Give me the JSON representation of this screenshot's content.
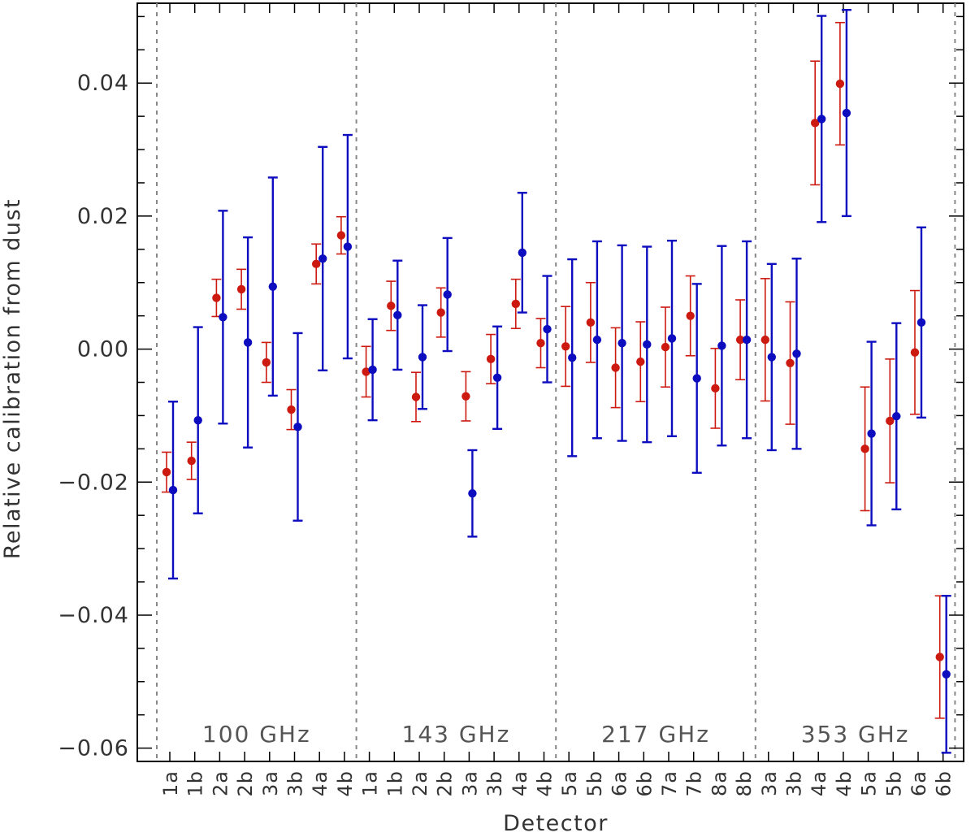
{
  "chart_data": {
    "type": "scatter",
    "xlabel": "Detector",
    "ylabel": "Relative calibration from dust",
    "ylim": [
      -0.062,
      0.052
    ],
    "yticks": [
      -0.06,
      -0.04,
      -0.02,
      0.0,
      0.02,
      0.04
    ],
    "ytick_labels": [
      "−0.06",
      "−0.04",
      "−0.02",
      "0.00",
      "0.02",
      "0.04"
    ],
    "ytick_minor_step": 0.005,
    "grid": false,
    "legend": "none",
    "bands": [
      "100 GHz",
      "143 GHz",
      "217 GHz",
      "353 GHz"
    ],
    "categories": [
      "1a",
      "1b",
      "2a",
      "2b",
      "3a",
      "3b",
      "4a",
      "4b",
      "1a",
      "1b",
      "2a",
      "2b",
      "3a",
      "3b",
      "4a",
      "4b",
      "5a",
      "5b",
      "6a",
      "6b",
      "7a",
      "7b",
      "8a",
      "8b",
      "3a",
      "3b",
      "4a",
      "4b",
      "5a",
      "5b",
      "6a",
      "6b"
    ],
    "series": [
      {
        "color": "#cc1a10",
        "values": [
          -0.0185,
          -0.0168,
          0.0077,
          0.009,
          -0.002,
          -0.0091,
          0.0128,
          0.0171,
          -0.0034,
          0.0065,
          -0.0072,
          0.0055,
          -0.0071,
          -0.0015,
          0.0068,
          0.0009,
          0.0004,
          0.004,
          -0.0028,
          -0.0019,
          0.0003,
          0.005,
          -0.0059,
          0.0014,
          0.0014,
          -0.0021,
          0.034,
          0.0399,
          -0.015,
          -0.0108,
          -0.0005,
          -0.0463
        ],
        "errors": [
          0.003,
          0.0028,
          0.0028,
          0.003,
          0.003,
          0.003,
          0.003,
          0.0028,
          0.0038,
          0.0037,
          0.0037,
          0.0037,
          0.0037,
          0.0037,
          0.0037,
          0.0037,
          0.006,
          0.006,
          0.006,
          0.006,
          0.006,
          0.006,
          0.006,
          0.006,
          0.0092,
          0.0092,
          0.0093,
          0.0092,
          0.0093,
          0.0093,
          0.0093,
          0.0092
        ]
      },
      {
        "color": "#0d0dbf",
        "values": [
          -0.0212,
          -0.0107,
          0.0048,
          0.001,
          0.0094,
          -0.0117,
          0.0136,
          0.0154,
          -0.0031,
          0.0051,
          -0.0012,
          0.0082,
          -0.0217,
          -0.0043,
          0.0145,
          0.003,
          -0.0013,
          0.0014,
          0.0009,
          0.0007,
          0.0016,
          -0.0044,
          0.0005,
          0.0014,
          -0.0012,
          -0.0007,
          0.0346,
          0.0355,
          -0.0127,
          -0.0101,
          0.004,
          -0.0489
        ],
        "errors": [
          0.0133,
          0.014,
          0.016,
          0.0158,
          0.0164,
          0.0141,
          0.0168,
          0.0168,
          0.0076,
          0.0082,
          0.0078,
          0.0085,
          0.0065,
          0.0077,
          0.009,
          0.008,
          0.0148,
          0.0148,
          0.0147,
          0.0147,
          0.0147,
          0.0142,
          0.015,
          0.0148,
          0.014,
          0.0143,
          0.0155,
          0.0155,
          0.0138,
          0.014,
          0.0143,
          0.0118
        ]
      }
    ]
  }
}
